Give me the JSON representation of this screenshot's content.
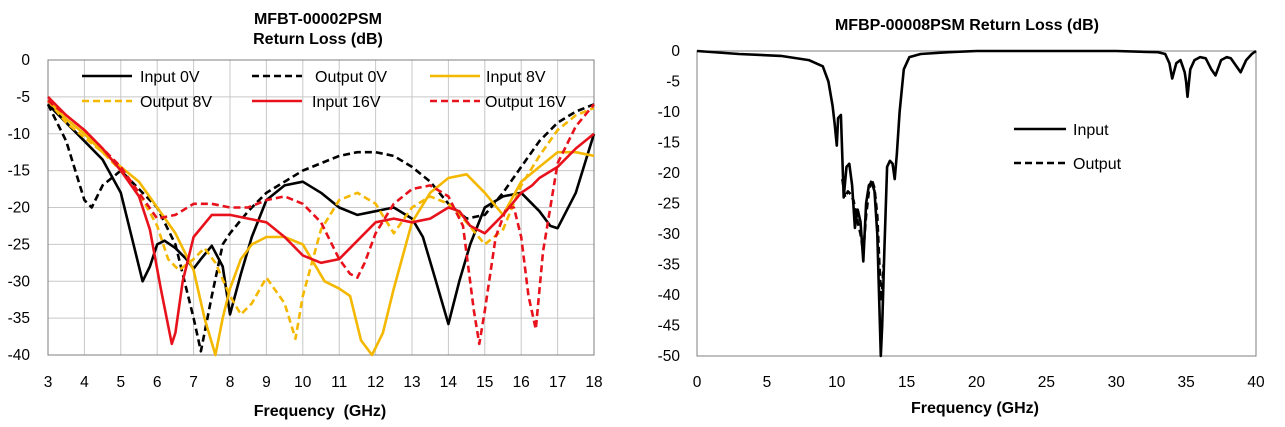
{
  "chart_data": [
    {
      "type": "line",
      "title_lines": [
        "MFBT-00002PSM",
        "Return Loss (dB)"
      ],
      "xlabel": "Frequency  (GHz)",
      "ylabel": "",
      "xlim": [
        3,
        18
      ],
      "ylim": [
        -40,
        0
      ],
      "xticks": [
        3,
        4,
        5,
        6,
        7,
        8,
        9,
        10,
        11,
        12,
        13,
        14,
        15,
        16,
        17,
        18
      ],
      "yticks": [
        0,
        -5,
        -10,
        -15,
        -20,
        -25,
        -30,
        -35,
        -40
      ],
      "grid": true,
      "legend_position": "top",
      "series": [
        {
          "name": "Input 0V",
          "color": "#000000",
          "dash": "solid",
          "x": [
            3,
            3.5,
            4,
            4.5,
            5,
            5.3,
            5.6,
            5.8,
            6,
            6.2,
            6.5,
            6.8,
            7,
            7.2,
            7.5,
            7.8,
            8,
            8.3,
            8.6,
            9,
            9.5,
            10,
            10.5,
            11,
            11.5,
            12,
            12.5,
            13,
            13.3,
            13.6,
            14,
            14.3,
            14.6,
            15,
            15.5,
            16,
            16.5,
            16.8,
            17,
            17.5,
            18
          ],
          "y": [
            -6,
            -8.5,
            -11,
            -13.5,
            -18,
            -24,
            -30,
            -28,
            -25,
            -24.5,
            -25.5,
            -27,
            -28.3,
            -27,
            -25.2,
            -28,
            -34.5,
            -29,
            -24,
            -19,
            -17,
            -16.5,
            -18,
            -20,
            -21,
            -20.5,
            -20,
            -21.5,
            -24,
            -29,
            -35.8,
            -30,
            -25,
            -20,
            -18.5,
            -18,
            -20.5,
            -22.5,
            -22.8,
            -18,
            -10
          ]
        },
        {
          "name": "Output 0V",
          "color": "#000000",
          "dash": "dash",
          "x": [
            3,
            3.5,
            4,
            4.2,
            4.5,
            5,
            5.5,
            6,
            6.5,
            7,
            7.2,
            7.5,
            7.8,
            8,
            8.5,
            9,
            10,
            11,
            11.5,
            12,
            12.5,
            13,
            13.5,
            14,
            14.5,
            15,
            15.5,
            16,
            16.5,
            17,
            17.5,
            18
          ],
          "y": [
            -6,
            -11,
            -19,
            -20,
            -17,
            -15,
            -17.5,
            -20,
            -25,
            -35,
            -39.5,
            -32,
            -25,
            -23.5,
            -20.5,
            -18,
            -15,
            -13,
            -12.5,
            -12.5,
            -13,
            -14.5,
            -16.5,
            -19.5,
            -21.5,
            -21,
            -18,
            -14.5,
            -11,
            -8.5,
            -7,
            -6
          ]
        },
        {
          "name": "Input 8V",
          "color": "#f5b800",
          "dash": "solid",
          "x": [
            3,
            3.5,
            4,
            4.5,
            5,
            5.5,
            6,
            6.5,
            7,
            7.3,
            7.6,
            7.8,
            8,
            8.3,
            8.6,
            9,
            9.5,
            10,
            10.3,
            10.6,
            11,
            11.3,
            11.6,
            11.9,
            12.2,
            12.5,
            13,
            13.5,
            14,
            14.5,
            15,
            15.5,
            16,
            16.5,
            17,
            17.5,
            18
          ],
          "y": [
            -5.5,
            -8,
            -10,
            -12.5,
            -14.5,
            -16.5,
            -20,
            -23.5,
            -28.5,
            -35,
            -40,
            -35,
            -31,
            -27,
            -25,
            -24,
            -24,
            -25,
            -27.5,
            -30,
            -31,
            -32,
            -38,
            -40,
            -37,
            -31,
            -22,
            -18,
            -16,
            -15.5,
            -18,
            -21,
            -16.5,
            -14.5,
            -12.5,
            -12.5,
            -13
          ]
        },
        {
          "name": "Output 8V",
          "color": "#f5b800",
          "dash": "dash",
          "x": [
            3,
            3.5,
            4,
            4.5,
            5,
            5.5,
            6,
            6.3,
            6.6,
            7,
            7.3,
            7.6,
            8,
            8.3,
            8.6,
            9,
            9.5,
            9.8,
            10,
            10.5,
            11,
            11.5,
            12,
            12.5,
            13,
            13.5,
            14,
            14.5,
            15,
            15.5,
            16,
            16.5,
            17,
            17.5,
            18
          ],
          "y": [
            -5.5,
            -8.5,
            -10.5,
            -12.5,
            -15,
            -18,
            -22.5,
            -27,
            -28.5,
            -27,
            -25.5,
            -27.5,
            -32,
            -34.5,
            -33,
            -29.5,
            -33,
            -37.8,
            -32,
            -23,
            -19,
            -18,
            -19.5,
            -23.5,
            -20,
            -18.5,
            -19.5,
            -22,
            -25,
            -23,
            -17,
            -13,
            -9.5,
            -7.5,
            -6.5
          ]
        },
        {
          "name": "Input 16V",
          "color": "#e8121c",
          "dash": "solid",
          "x": [
            3,
            3.5,
            4,
            4.5,
            5,
            5.5,
            5.8,
            6.1,
            6.4,
            6.5,
            6.7,
            7,
            7.5,
            8,
            8.5,
            9,
            9.5,
            10,
            10.5,
            11,
            11.5,
            12,
            12.5,
            13,
            13.5,
            14,
            14.3,
            14.6,
            15,
            15.5,
            16,
            16.3,
            16.5,
            17,
            17.5,
            18
          ],
          "y": [
            -5,
            -7.5,
            -9.5,
            -12,
            -15,
            -18.5,
            -23,
            -31,
            -38.5,
            -37,
            -30,
            -24,
            -21,
            -21,
            -21.5,
            -22,
            -24,
            -26.5,
            -27.5,
            -27,
            -24.5,
            -22,
            -21.5,
            -22,
            -21.5,
            -20,
            -20.5,
            -22.5,
            -23.5,
            -21,
            -18,
            -17,
            -16,
            -14.5,
            -12,
            -10
          ]
        },
        {
          "name": "Output 16V",
          "color": "#e8121c",
          "dash": "dash",
          "x": [
            3,
            3.5,
            4,
            4.5,
            5,
            5.5,
            6,
            6.5,
            7,
            7.5,
            8,
            8.5,
            9,
            9.5,
            10,
            10.5,
            11,
            11.3,
            11.5,
            11.7,
            12,
            12.5,
            13,
            13.5,
            14,
            14.4,
            14.7,
            14.85,
            15,
            15.3,
            15.6,
            15.8,
            16,
            16.2,
            16.4,
            16.6,
            17,
            17.5,
            18
          ],
          "y": [
            -5.5,
            -7.5,
            -9.5,
            -12,
            -14.5,
            -18,
            -21.5,
            -21,
            -19.5,
            -19.5,
            -20,
            -20,
            -19,
            -18.5,
            -19.5,
            -22,
            -27,
            -29,
            -29.5,
            -27.5,
            -23.5,
            -19.5,
            -17.5,
            -17,
            -18.5,
            -22.5,
            -34,
            -38.5,
            -34,
            -24,
            -20,
            -20,
            -24,
            -32,
            -36.5,
            -26,
            -14,
            -9,
            -6
          ]
        }
      ]
    },
    {
      "type": "line",
      "title": "MFBP-00008PSM Return Loss (dB)",
      "xlabel": "Frequency (GHz)",
      "ylabel": "",
      "xlim": [
        0,
        40
      ],
      "ylim": [
        -50,
        0
      ],
      "xticks": [
        0,
        5,
        10,
        15,
        20,
        25,
        30,
        35,
        40
      ],
      "yticks": [
        0,
        -5,
        -10,
        -15,
        -20,
        -25,
        -30,
        -35,
        -40,
        -45,
        -50
      ],
      "grid": false,
      "legend_position": "center",
      "series": [
        {
          "name": "Input",
          "color": "#000000",
          "dash": "solid",
          "x": [
            0,
            3,
            6,
            8,
            9,
            9.4,
            9.7,
            9.85,
            10,
            10.1,
            10.3,
            10.5,
            10.7,
            10.9,
            11.1,
            11.3,
            11.5,
            11.7,
            11.9,
            12.1,
            12.3,
            12.5,
            12.7,
            12.9,
            13.05,
            13.15,
            13.25,
            13.4,
            13.6,
            13.8,
            14,
            14.15,
            14.3,
            14.5,
            14.8,
            15.2,
            16,
            18,
            20,
            25,
            30,
            33,
            33.5,
            33.8,
            34,
            34.3,
            34.6,
            34.9,
            35,
            35.1,
            35.3,
            35.6,
            36,
            36.4,
            36.8,
            37.1,
            37.5,
            37.9,
            38.2,
            38.6,
            38.9,
            39.3,
            39.7,
            40
          ],
          "y": [
            0,
            -0.5,
            -0.8,
            -1.5,
            -2.5,
            -5,
            -9,
            -12,
            -15.5,
            -11,
            -10.5,
            -24,
            -19,
            -18.5,
            -22,
            -29,
            -26,
            -28,
            -34.5,
            -25,
            -22,
            -21.5,
            -23,
            -30,
            -42,
            -50,
            -45,
            -33,
            -19,
            -18,
            -18.5,
            -21,
            -17,
            -10,
            -3,
            -1,
            -0.5,
            -0.2,
            0,
            0,
            0,
            -0.2,
            -0.5,
            -2,
            -4.5,
            -2,
            -1.5,
            -3.5,
            -5,
            -7.5,
            -3,
            -1.5,
            -1,
            -1.2,
            -3,
            -4,
            -1.5,
            -1,
            -1.2,
            -2.5,
            -3.5,
            -1.5,
            -0.5,
            0
          ]
        },
        {
          "name": "Output",
          "color": "#000000",
          "dash": "dash",
          "x": [
            10.4,
            10.6,
            10.8,
            11,
            11.2,
            11.5,
            11.7,
            11.9,
            12.1,
            12.3,
            12.5,
            12.7,
            12.9,
            13.05,
            13.2,
            13.35
          ],
          "y": [
            -21,
            -24,
            -23,
            -23.5,
            -24.5,
            -28,
            -30,
            -33,
            -27,
            -23,
            -21,
            -22.5,
            -27,
            -35,
            -41,
            -35
          ]
        }
      ]
    }
  ]
}
